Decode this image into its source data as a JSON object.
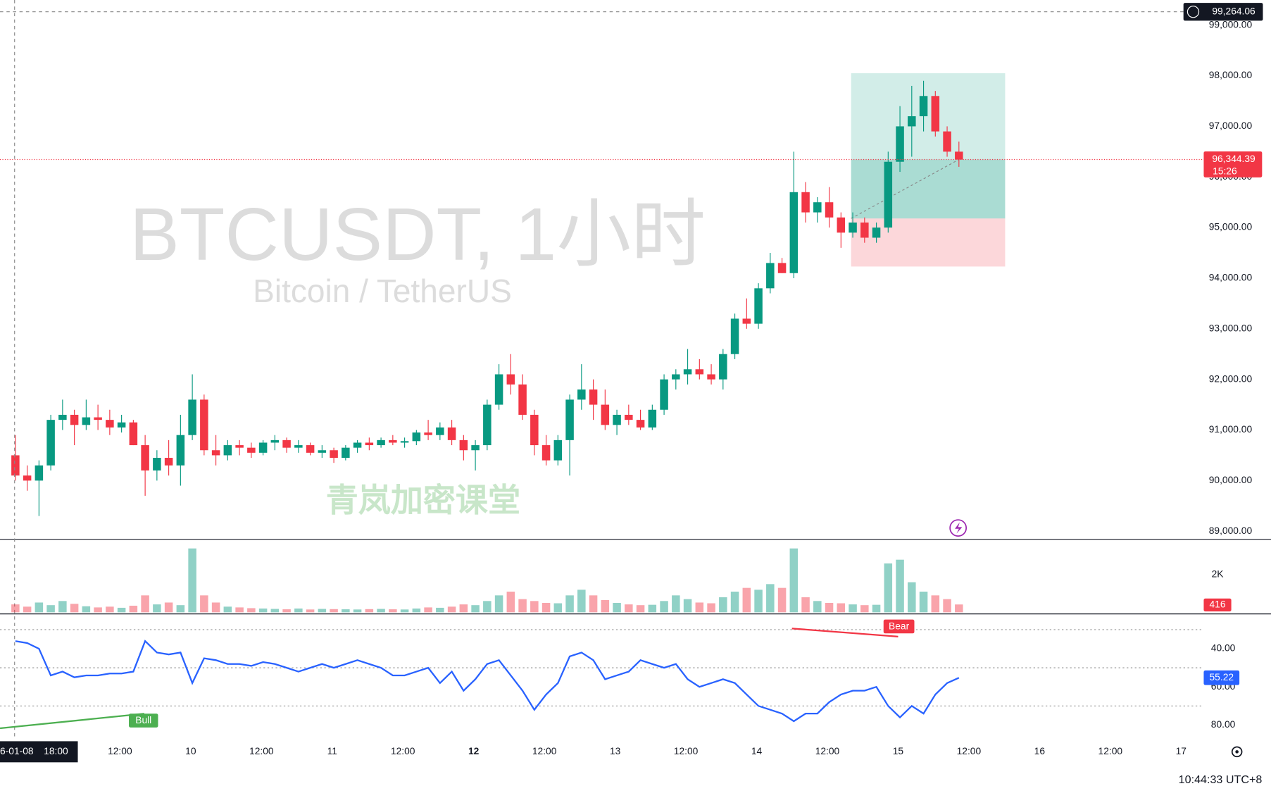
{
  "chart_data": [
    {
      "type": "candlestick",
      "up_color": "#089981",
      "down_color": "#f23645",
      "ohlc": [
        [
          90500,
          90900,
          90000,
          90100
        ],
        [
          90100,
          90300,
          89800,
          90000
        ],
        [
          90000,
          90400,
          89300,
          90300
        ],
        [
          90300,
          91300,
          90200,
          91200
        ],
        [
          91200,
          91600,
          91000,
          91300
        ],
        [
          91300,
          91400,
          90700,
          91100
        ],
        [
          91100,
          91600,
          91000,
          91250
        ],
        [
          91250,
          91500,
          91000,
          91200
        ],
        [
          91200,
          91400,
          90900,
          91050
        ],
        [
          91050,
          91300,
          90950,
          91150
        ],
        [
          91150,
          91200,
          90700,
          90700
        ],
        [
          90700,
          90900,
          89700,
          90200
        ],
        [
          90200,
          90600,
          90000,
          90450
        ],
        [
          90450,
          90800,
          90100,
          90300
        ],
        [
          90300,
          91300,
          89900,
          90900
        ],
        [
          90900,
          92100,
          90800,
          91600
        ],
        [
          91600,
          91700,
          90500,
          90600
        ],
        [
          90600,
          90900,
          90300,
          90500
        ],
        [
          90500,
          90800,
          90400,
          90700
        ],
        [
          90700,
          90800,
          90500,
          90650
        ],
        [
          90650,
          90750,
          90450,
          90550
        ],
        [
          90550,
          90800,
          90500,
          90750
        ],
        [
          90750,
          90900,
          90600,
          90800
        ],
        [
          90800,
          90850,
          90550,
          90650
        ],
        [
          90650,
          90800,
          90550,
          90700
        ],
        [
          90700,
          90750,
          90500,
          90550
        ],
        [
          90550,
          90700,
          90450,
          90600
        ],
        [
          90600,
          90650,
          90350,
          90450
        ],
        [
          90450,
          90700,
          90400,
          90650
        ],
        [
          90650,
          90800,
          90550,
          90750
        ],
        [
          90750,
          90850,
          90600,
          90700
        ],
        [
          90700,
          90850,
          90650,
          90800
        ],
        [
          90800,
          90900,
          90700,
          90750
        ],
        [
          90750,
          90850,
          90650,
          90780
        ],
        [
          90780,
          91000,
          90700,
          90950
        ],
        [
          90950,
          91200,
          90800,
          90900
        ],
        [
          90900,
          91150,
          90800,
          91050
        ],
        [
          91050,
          91200,
          90700,
          90800
        ],
        [
          90800,
          90900,
          90400,
          90600
        ],
        [
          90600,
          90800,
          90200,
          90700
        ],
        [
          90700,
          91600,
          90600,
          91500
        ],
        [
          91500,
          92300,
          91400,
          92100
        ],
        [
          92100,
          92500,
          91700,
          91900
        ],
        [
          91900,
          92100,
          91200,
          91300
        ],
        [
          91300,
          91400,
          90500,
          90700
        ],
        [
          90700,
          90900,
          90300,
          90400
        ],
        [
          90400,
          90900,
          90300,
          90800
        ],
        [
          90800,
          91700,
          90100,
          91600
        ],
        [
          91600,
          92300,
          91400,
          91800
        ],
        [
          91800,
          92000,
          91200,
          91500
        ],
        [
          91500,
          91800,
          91000,
          91100
        ],
        [
          91100,
          91400,
          90900,
          91300
        ],
        [
          91300,
          91500,
          91100,
          91200
        ],
        [
          91200,
          91400,
          91000,
          91050
        ],
        [
          91050,
          91500,
          91000,
          91400
        ],
        [
          91400,
          92100,
          91300,
          92000
        ],
        [
          92000,
          92200,
          91800,
          92100
        ],
        [
          92100,
          92600,
          91900,
          92200
        ],
        [
          92200,
          92400,
          92000,
          92100
        ],
        [
          92100,
          92300,
          91900,
          92000
        ],
        [
          92000,
          92600,
          91800,
          92500
        ],
        [
          92500,
          93300,
          92400,
          93200
        ],
        [
          93200,
          93600,
          93000,
          93100
        ],
        [
          93100,
          93900,
          93000,
          93800
        ],
        [
          93800,
          94500,
          93700,
          94300
        ],
        [
          94300,
          94400,
          94100,
          94100
        ],
        [
          94100,
          96500,
          94000,
          95700
        ],
        [
          95700,
          95900,
          95100,
          95300
        ],
        [
          95300,
          95600,
          95100,
          95500
        ],
        [
          95500,
          95800,
          95000,
          95200
        ],
        [
          95200,
          95300,
          94600,
          94900
        ],
        [
          94900,
          95300,
          94800,
          95100
        ],
        [
          95100,
          95200,
          94700,
          94800
        ],
        [
          94800,
          95100,
          94700,
          95000
        ],
        [
          95000,
          96500,
          94900,
          96300
        ],
        [
          96300,
          97400,
          96100,
          97000
        ],
        [
          97000,
          97800,
          96400,
          97200
        ],
        [
          97200,
          97900,
          96900,
          97600
        ],
        [
          97600,
          97700,
          96800,
          96900
        ],
        [
          96900,
          97000,
          96400,
          96500
        ],
        [
          96500,
          96700,
          96200,
          96344.39
        ]
      ],
      "ylim": [
        88840,
        99497
      ],
      "yticks": [
        {
          "value": 89000,
          "label": "89,000.00"
        },
        {
          "value": 90000,
          "label": "90,000.00"
        },
        {
          "value": 91000,
          "label": "91,000.00"
        },
        {
          "value": 92000,
          "label": "92,000.00"
        },
        {
          "value": 93000,
          "label": "93,000.00"
        },
        {
          "value": 94000,
          "label": "94,000.00"
        },
        {
          "value": 95000,
          "label": "95,000.00"
        },
        {
          "value": 96000,
          "label": "96,000.00"
        },
        {
          "value": 97000,
          "label": "97,000.00"
        },
        {
          "value": 98000,
          "label": "98,000.00"
        },
        {
          "value": 99000,
          "label": "99,000.00"
        }
      ],
      "last_price": 96344.39,
      "last_price_label": "96,344.39",
      "countdown": "15:26",
      "crosshair_price": 99264.06,
      "crosshair_price_label": "99,264.06",
      "crosshair_time_label": [
        "6-01-08",
        "18:00"
      ],
      "position_tool": {
        "take_profit": 98050,
        "entry": 95180,
        "stop_loss": 94230
      },
      "x_tick_labels": [
        "12:00",
        "10",
        "12:00",
        "11",
        "12:00",
        "12",
        "12:00",
        "13",
        "12:00",
        "14",
        "12:00",
        "15",
        "12:00",
        "16",
        "12:00",
        "17"
      ]
    },
    {
      "type": "volume",
      "values": [
        420,
        300,
        520,
        380,
        600,
        450,
        320,
        260,
        300,
        240,
        350,
        900,
        420,
        520,
        380,
        3400,
        900,
        520,
        300,
        260,
        220,
        200,
        180,
        160,
        200,
        150,
        180,
        170,
        160,
        150,
        170,
        180,
        160,
        150,
        200,
        260,
        240,
        300,
        420,
        380,
        600,
        900,
        1100,
        700,
        600,
        500,
        480,
        900,
        1200,
        900,
        650,
        500,
        420,
        380,
        400,
        600,
        900,
        700,
        520,
        480,
        800,
        1100,
        1300,
        1200,
        1500,
        1300,
        3400,
        800,
        600,
        500,
        480,
        420,
        380,
        400,
        2600,
        2800,
        1600,
        1100,
        900,
        700,
        416
      ],
      "ylim": [
        0,
        3800
      ],
      "yticks": [
        {
          "value": 2000,
          "label": "2K"
        }
      ]
    },
    {
      "type": "line",
      "name": "RSI",
      "color": "#2962ff",
      "values": [
        36,
        37,
        40,
        54,
        52,
        55,
        54,
        54,
        53,
        53,
        52,
        36,
        42,
        43,
        42,
        58,
        45,
        46,
        48,
        48,
        49,
        47,
        48,
        50,
        52,
        50,
        48,
        50,
        48,
        46,
        48,
        50,
        54,
        54,
        52,
        50,
        58,
        52,
        62,
        56,
        48,
        46,
        54,
        62,
        72,
        64,
        58,
        44,
        42,
        46,
        56,
        54,
        52,
        46,
        48,
        50,
        48,
        56,
        60,
        58,
        56,
        58,
        64,
        70,
        72,
        74,
        78,
        74,
        74,
        68,
        64,
        62,
        62,
        60,
        70,
        76,
        70,
        74,
        64,
        58,
        55.22
      ],
      "ylim": [
        22.6,
        86.8
      ],
      "yticks": [
        {
          "value": 40,
          "label": "40.00"
        },
        {
          "value": 60,
          "label": "60.00"
        },
        {
          "value": 80,
          "label": "80.00"
        }
      ],
      "levels": [
        70,
        50,
        30
      ],
      "annotations": [
        "Bear",
        "Bull"
      ]
    }
  ],
  "watermark": {
    "symbol": "BTCUSDT, 1小时",
    "name": "Bitcoin / TetherUS",
    "brand": "青岚加密课堂"
  },
  "clock": "10:44:33 UTC+8"
}
